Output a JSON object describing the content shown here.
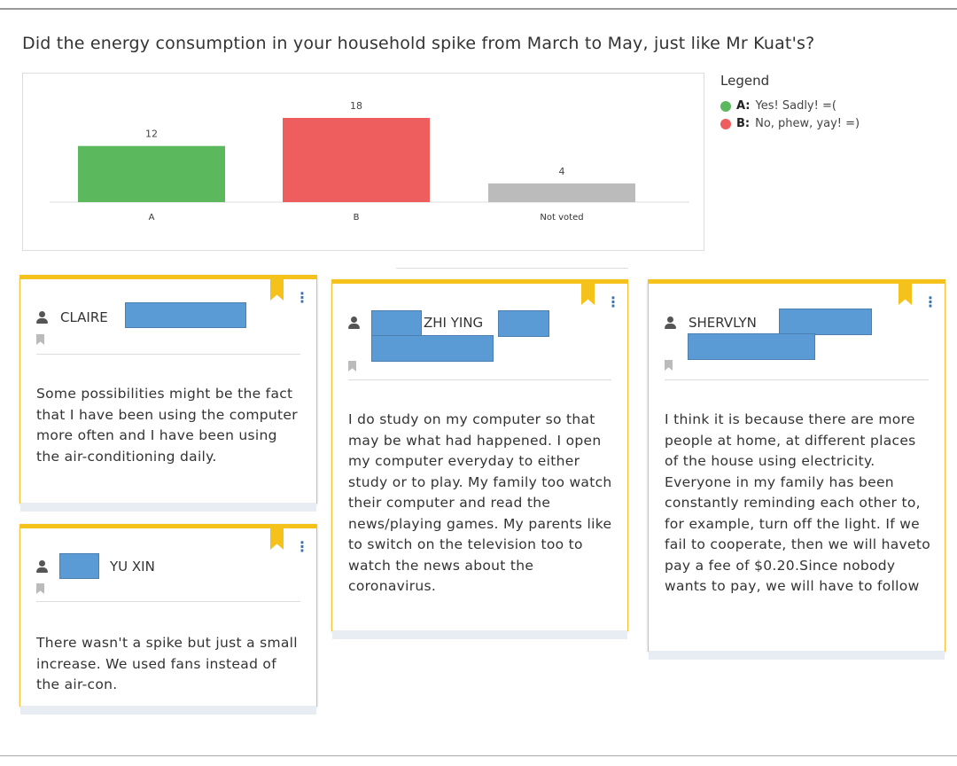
{
  "question": "Did the energy consumption in your household spike from March to May, just like Mr Kuat's?",
  "legend": {
    "title": "Legend",
    "items": [
      {
        "key": "A:",
        "label": "Yes! Sadly! =(",
        "color": "#5cb85c"
      },
      {
        "key": "B:",
        "label": "No, phew, yay! =)",
        "color": "#ef5e5e"
      }
    ]
  },
  "chart_data": {
    "type": "bar",
    "categories": [
      "A",
      "B",
      "Not voted"
    ],
    "values": [
      12,
      18,
      4
    ],
    "colors": [
      "#5cb85c",
      "#ef5e5e",
      "#bbbbbb"
    ],
    "title": "",
    "xlabel": "",
    "ylabel": "",
    "ylim": [
      0,
      18
    ],
    "grid": false,
    "legend_placement": "right"
  },
  "posts": [
    {
      "name": "CLAIRE",
      "text": "Some possibilities might be the fact that I have been using the computer more often and I have been using the air-conditioning daily."
    },
    {
      "name": "YU XIN",
      "text": "There wasn't a spike but just a small increase. We used fans instead of the air-con."
    },
    {
      "name": "ZHI YING",
      "text": "I do study on my computer so that may be what had happened. I open my computer everyday to either study or to play. My family too watch their computer and read the news/playing games. My parents like to switch on the television too to watch the news about the coronavirus."
    },
    {
      "name": "SHERVLYN",
      "text": "I think it is because there are more people at home, at different places of the house using electricity. Everyone in my family has been constantly reminding each other to, for example, turn off the light. If we fail to cooperate, then we will haveto pay a fee of $0.20.Since nobody wants to pay, we will have to follow"
    }
  ],
  "menu_icon": "⋮"
}
